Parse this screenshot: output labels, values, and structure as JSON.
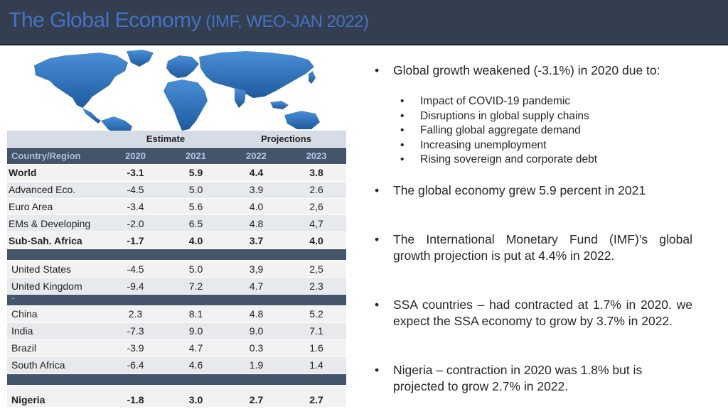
{
  "slide": {
    "title_main": "The Global Economy",
    "title_sub": " (IMF, WEO-JAN 2022)"
  },
  "table": {
    "group_header": {
      "estimate": "Estimate",
      "projections": "Projections"
    },
    "columns": [
      "Country/Region",
      "2020",
      "2021",
      "2022",
      "2023"
    ],
    "rows": {
      "world": [
        "World",
        "-3.1",
        "5.9",
        "4.4",
        "3.8"
      ],
      "advanced": [
        "Advanced  Eco.",
        "-4.5",
        "5.0",
        "3.9",
        "2.6"
      ],
      "euro": [
        "Euro Area",
        "-3.4",
        "5.6",
        "4.0",
        "2,6"
      ],
      "ems": [
        "EMs & Developing",
        "-2.0",
        "6.5",
        "4.8",
        "4,7"
      ],
      "ssa": [
        "Sub-Sah. Africa",
        "-1.7",
        "4.0",
        "3.7",
        "4.0"
      ],
      "us": [
        "United States",
        "-4.5",
        "5.0",
        "3,9",
        "2,5"
      ],
      "uk": [
        "United Kingdom",
        "-9.4",
        "7.2",
        "4.7",
        "2.3"
      ],
      "china": [
        "China",
        "2.3",
        "8.1",
        "4.8",
        "5.2"
      ],
      "india": [
        "India",
        "-7.3",
        "9.0",
        "9.0",
        "7.1"
      ],
      "brazil": [
        "Brazil",
        "-3.9",
        "4.7",
        "0.3",
        "1.6"
      ],
      "sa": [
        "South Africa",
        "-6.4",
        "4.6",
        "1.9",
        "1.4"
      ],
      "nigeria": [
        "Nigeria",
        "-1.8",
        "3.0",
        "2.7",
        "2.7"
      ]
    },
    "separator_mark": ".."
  },
  "bullets": {
    "b1": "Global growth weakened (-3.1%) in 2020 due to:",
    "b1_subs": [
      "Impact of COVID-19 pandemic",
      "Disruptions in global supply chains",
      "Falling global aggregate demand",
      "Increasing unemployment",
      "Rising sovereign and corporate debt"
    ],
    "b2": "The global economy grew 5.9 percent in 2021",
    "b3": "The International Monetary Fund (IMF)’s global growth projection is put at 4.4% in 2022.",
    "b4": "SSA countries – had contracted at 1.7% in 2020. we expect the SSA economy to grow by 3.7% in 2022.",
    "b5": " Nigeria – contraction in 2020  was 1.8% but is projected to grow 2.7% in 2022.",
    "bullet_char": "•"
  },
  "colors": {
    "title_bar": "#333f50",
    "title_text": "#4472c4",
    "map_blue": "#2e6fb7",
    "table_header_dark": "#44546a",
    "table_header_light": "#d6dce5"
  },
  "icons": {
    "map": "world-map-illustration"
  }
}
